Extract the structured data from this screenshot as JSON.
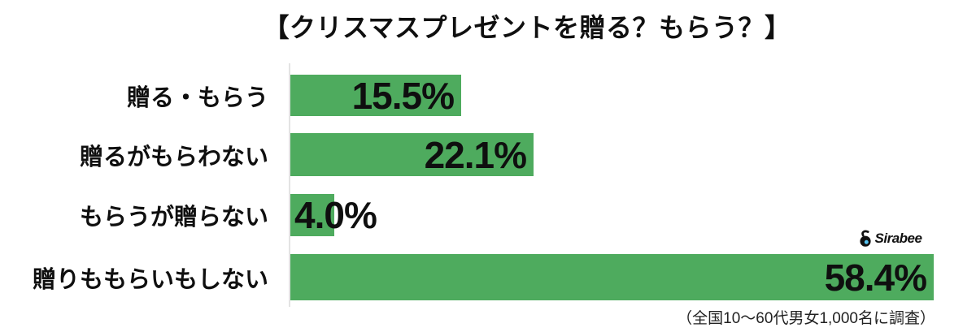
{
  "chart_data": {
    "type": "bar",
    "orientation": "horizontal",
    "title": "【クリスマスプレゼントを贈る？もらう？】",
    "categories": [
      "贈る・もらう",
      "贈るがもらわない",
      "もらうが贈らない",
      "贈りももらいもしない"
    ],
    "values": [
      15.5,
      22.1,
      4.0,
      58.4
    ],
    "value_labels": [
      "15.5%",
      "22.1%",
      "4.0%",
      "58.4%"
    ],
    "xlim": [
      0,
      59
    ],
    "grid": "off",
    "legend": "none",
    "bar_color": "#4eab5e",
    "text_color": "#0f0f0f",
    "axis_line_color": "#e3e3e3"
  },
  "footer": {
    "note": "（全国10〜60代男女1,000名に調査）"
  },
  "logo": {
    "text": "Sirabee",
    "bg_color": "#54c3f1",
    "icon": "sirabee-bee-icon",
    "icon_color": "#111111"
  }
}
